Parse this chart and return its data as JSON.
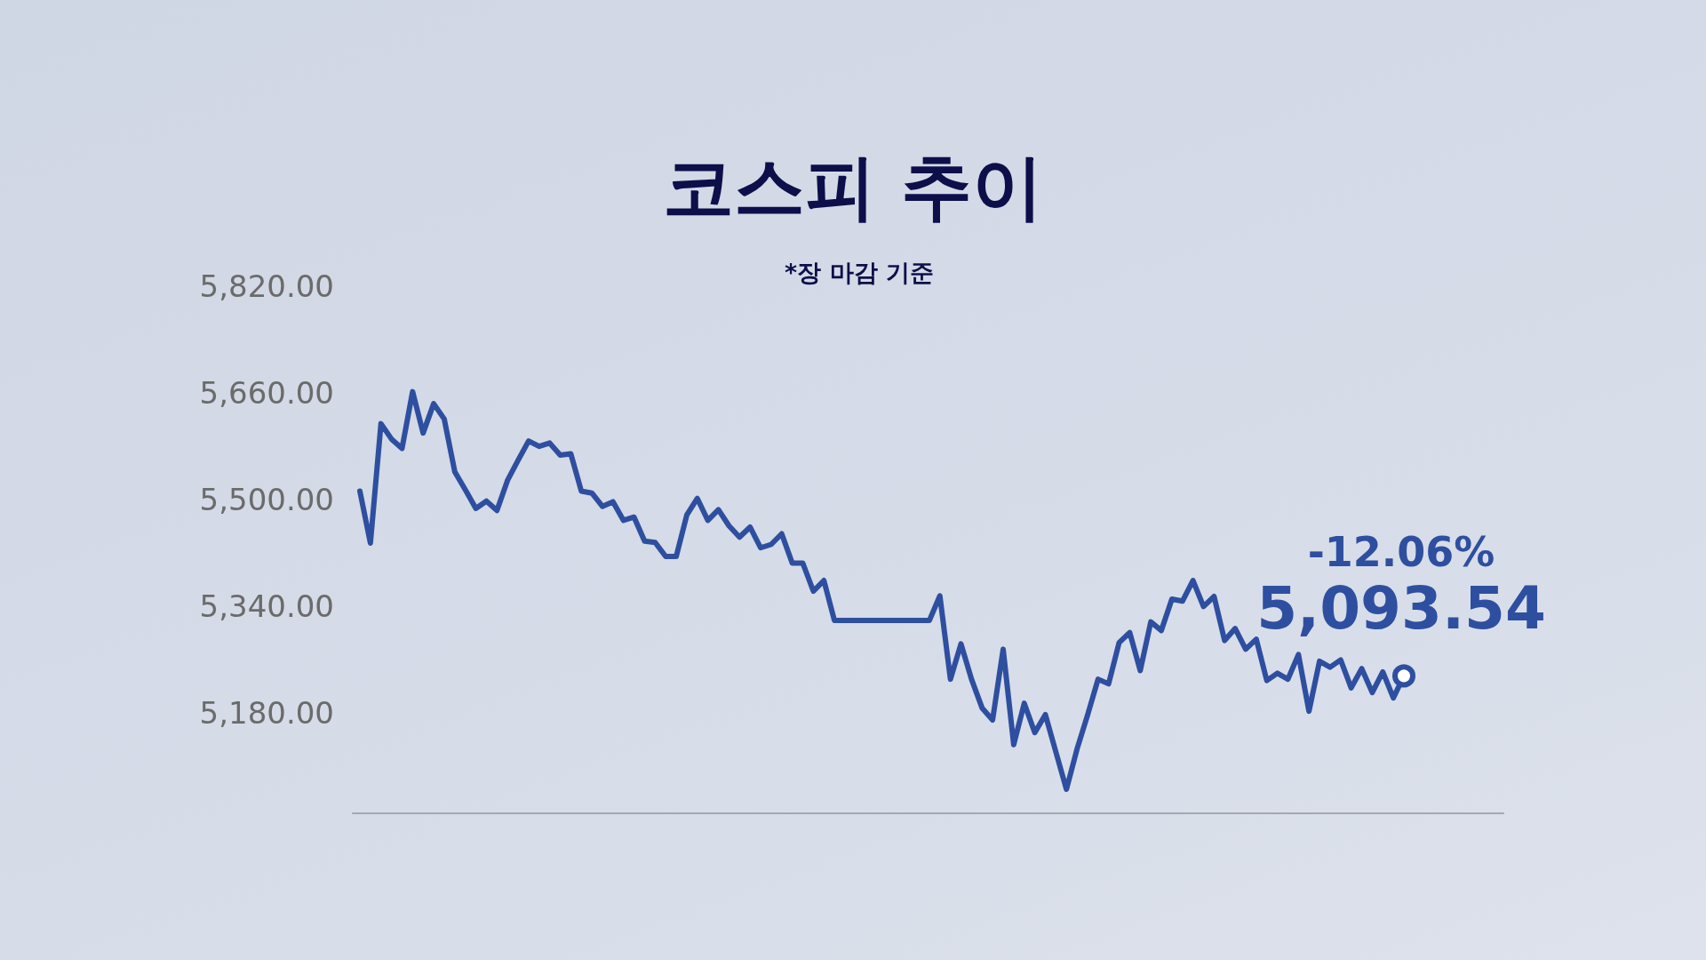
{
  "chart_data": {
    "type": "line",
    "title": "코스피 추이",
    "subtitle": "*장 마감 기준",
    "annotations": [
      "-12.06%",
      "5,093.54"
    ],
    "categories": [
      null,
      null,
      null,
      null,
      null,
      null,
      null,
      null,
      null,
      null,
      null,
      null,
      null,
      null,
      null,
      null,
      null,
      null,
      null,
      null,
      null,
      null,
      null,
      null,
      null,
      null,
      null,
      null,
      null,
      null,
      null,
      null,
      null,
      null,
      null,
      null,
      null,
      null,
      null,
      null,
      null,
      null,
      null,
      null,
      null,
      null,
      null,
      null,
      null,
      null,
      null,
      null,
      null,
      null,
      null,
      null,
      null,
      null,
      null,
      null,
      null,
      null,
      null,
      null,
      null,
      null,
      null,
      null,
      null,
      null,
      null,
      null,
      null,
      null,
      null,
      null,
      null,
      null,
      null,
      null,
      null,
      null,
      null,
      null,
      null,
      null,
      null,
      null,
      null,
      null,
      null,
      null,
      null,
      null,
      null,
      null,
      null,
      null,
      null,
      null
    ],
    "series": [
      {
        "color": "#2e4fa0",
        "values": [
          5513,
          5435,
          5614,
          5591,
          5577,
          5662,
          5600,
          5644,
          5621,
          5542,
          5515,
          5487,
          5498,
          5484,
          5529,
          5559,
          5588,
          5580,
          5585,
          5567,
          5569,
          5513,
          5510,
          5490,
          5497,
          5469,
          5474,
          5438,
          5436,
          5415,
          5415,
          5477,
          5502,
          5469,
          5485,
          5461,
          5444,
          5459,
          5428,
          5433,
          5449,
          5405,
          5405,
          5363,
          5379,
          5319,
          5319,
          5319,
          5319,
          5319,
          5319,
          5319,
          5319,
          5319,
          5319,
          5356,
          5231,
          5284,
          5231,
          5188,
          5170,
          5276,
          5133,
          5195,
          5151,
          5178,
          5122,
          5066,
          5126,
          5177,
          5231,
          5224,
          5286,
          5301,
          5244,
          5317,
          5304,
          5351,
          5348,
          5379,
          5340,
          5355,
          5289,
          5307,
          5276,
          5291,
          5229,
          5240,
          5231,
          5268,
          5183,
          5258,
          5249,
          5260,
          5218,
          5247,
          5211,
          5242,
          5203,
          5236
        ]
      }
    ],
    "ylim": [
      5030,
      5820
    ],
    "yticks": [
      {
        "value": 5180,
        "label": "5,180.00"
      },
      {
        "value": 5340,
        "label": "5,340.00"
      },
      {
        "value": 5500,
        "label": "5,500.00"
      },
      {
        "value": 5660,
        "label": "5,660.00"
      },
      {
        "value": 5820,
        "label": "5,820.00"
      }
    ],
    "tick_labels": "y",
    "grid": false,
    "line_style": "solid"
  }
}
